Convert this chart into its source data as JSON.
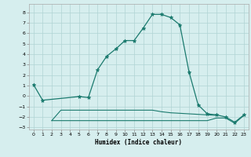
{
  "x": [
    0,
    1,
    2,
    3,
    4,
    5,
    6,
    7,
    8,
    9,
    10,
    11,
    12,
    13,
    14,
    15,
    16,
    17,
    18,
    19,
    20,
    21,
    22,
    23
  ],
  "line1": [
    1.1,
    -0.4,
    null,
    null,
    null,
    -0.05,
    -0.15,
    2.5,
    3.8,
    4.5,
    5.3,
    5.3,
    6.5,
    7.8,
    7.8,
    7.5,
    6.8,
    2.3,
    -0.85,
    -1.7,
    -1.8,
    -2.0,
    -2.5,
    -1.8
  ],
  "line2": [
    null,
    null,
    -2.35,
    -1.35,
    -1.35,
    -1.35,
    -1.35,
    -1.35,
    -1.35,
    -1.35,
    -1.35,
    -1.35,
    -1.35,
    -1.35,
    -1.5,
    -1.6,
    -1.65,
    -1.7,
    -1.75,
    -1.8,
    -1.85,
    null,
    null,
    null
  ],
  "line3": [
    null,
    null,
    -2.35,
    -2.35,
    -2.35,
    -2.35,
    -2.35,
    -2.35,
    -2.35,
    -2.35,
    -2.35,
    -2.35,
    -2.35,
    -2.35,
    -2.35,
    -2.35,
    -2.35,
    -2.35,
    -2.35,
    -2.35,
    -2.1,
    -2.1,
    -2.6,
    -1.85
  ],
  "line_color": "#1a7a6e",
  "bg_color": "#d6eeee",
  "grid_color": "#b0d4d4",
  "xlabel": "Humidex (Indice chaleur)",
  "xlim": [
    -0.5,
    23.5
  ],
  "ylim": [
    -3.2,
    8.8
  ],
  "yticks": [
    -3,
    -2,
    -1,
    0,
    1,
    2,
    3,
    4,
    5,
    6,
    7,
    8
  ],
  "xticks": [
    0,
    1,
    2,
    3,
    4,
    5,
    6,
    7,
    8,
    9,
    10,
    11,
    12,
    13,
    14,
    15,
    16,
    17,
    18,
    19,
    20,
    21,
    22,
    23
  ]
}
